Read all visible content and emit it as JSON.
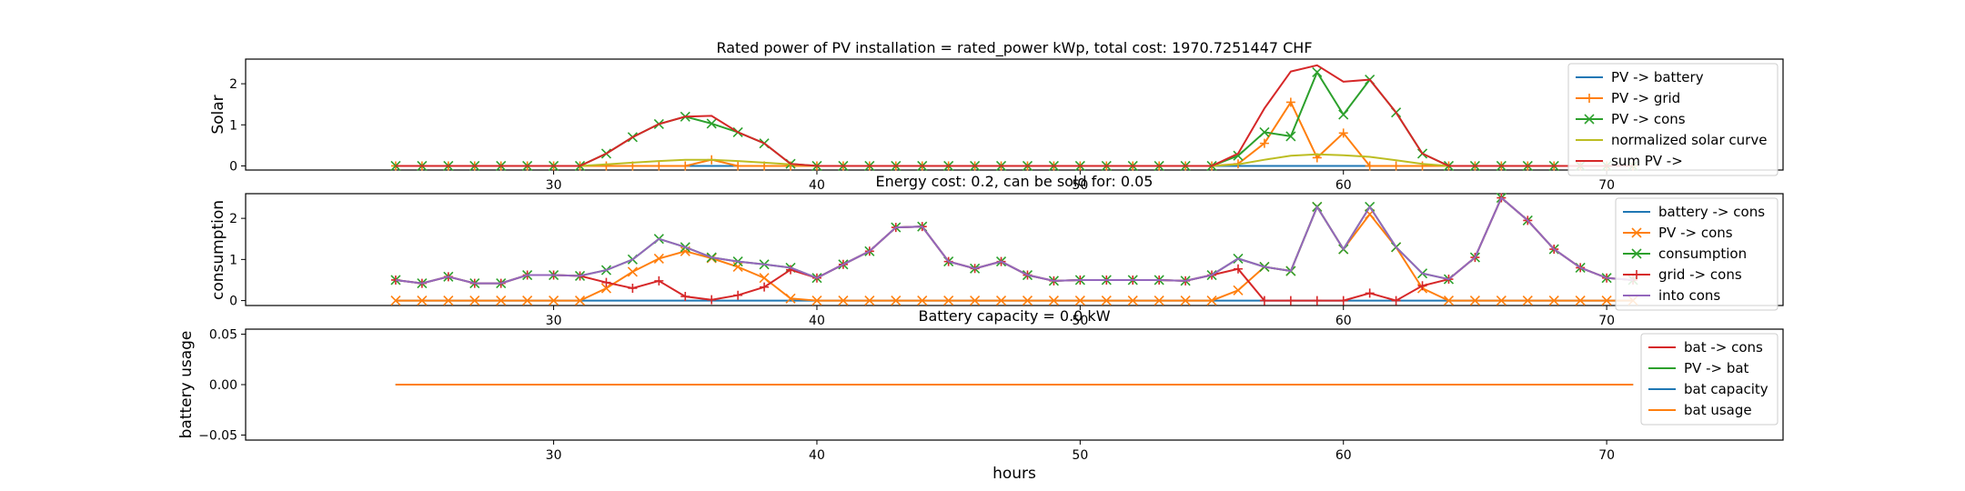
{
  "figure": {
    "xlabel": "hours",
    "xticks": [
      30,
      40,
      50,
      60,
      70
    ]
  },
  "chart_data": [
    {
      "type": "line",
      "title": "Rated power of PV installation = rated_power kWp, total cost: 1970.7251447 CHF",
      "xlabel": "",
      "ylabel": "Solar",
      "xlim": [
        18.3,
        76.7
      ],
      "ylim": [
        -0.1,
        2.6
      ],
      "yticks": [
        0,
        1,
        2
      ],
      "legend_position": "top-right",
      "x": [
        24,
        25,
        26,
        27,
        28,
        29,
        30,
        31,
        32,
        33,
        34,
        35,
        36,
        37,
        38,
        39,
        40,
        41,
        42,
        43,
        44,
        45,
        46,
        47,
        48,
        49,
        50,
        51,
        52,
        53,
        54,
        55,
        56,
        57,
        58,
        59,
        60,
        61,
        62,
        63,
        64,
        65,
        66,
        67,
        68,
        69,
        70,
        71
      ],
      "series": [
        {
          "name": "PV -> battery",
          "color": "#1f77b4",
          "marker": "none",
          "values": [
            0,
            0,
            0,
            0,
            0,
            0,
            0,
            0,
            0,
            0,
            0,
            0,
            0,
            0,
            0,
            0,
            0,
            0,
            0,
            0,
            0,
            0,
            0,
            0,
            0,
            0,
            0,
            0,
            0,
            0,
            0,
            0,
            0,
            0,
            0,
            0,
            0,
            0,
            0,
            0,
            0,
            0,
            0,
            0,
            0,
            0,
            0,
            0
          ]
        },
        {
          "name": "PV -> grid",
          "color": "#ff7f0e",
          "marker": "plus",
          "values": [
            0,
            0,
            0,
            0,
            0,
            0,
            0,
            0,
            0,
            0,
            0,
            0,
            0.15,
            0,
            0,
            0,
            0,
            0,
            0,
            0,
            0,
            0,
            0,
            0,
            0,
            0,
            0,
            0,
            0,
            0,
            0,
            0,
            0.05,
            0.55,
            1.55,
            0.2,
            0.8,
            0,
            0,
            0,
            0,
            0,
            0,
            0,
            0,
            0,
            0,
            0
          ]
        },
        {
          "name": "PV -> cons",
          "color": "#2ca02c",
          "marker": "x",
          "values": [
            0,
            0,
            0,
            0,
            0,
            0,
            0,
            0,
            0.3,
            0.7,
            1.02,
            1.2,
            1.03,
            0.82,
            0.55,
            0.05,
            0,
            0,
            0,
            0,
            0,
            0,
            0,
            0,
            0,
            0,
            0,
            0,
            0,
            0,
            0,
            0,
            0.25,
            0.82,
            0.72,
            2.28,
            1.25,
            2.1,
            1.3,
            0.3,
            0,
            0,
            0,
            0,
            0,
            0,
            0,
            0
          ]
        },
        {
          "name": "normalized solar curve",
          "color": "#bcbd22",
          "marker": "none",
          "values": [
            0,
            0,
            0,
            0,
            0,
            0,
            0,
            0,
            0.04,
            0.08,
            0.12,
            0.15,
            0.15,
            0.12,
            0.08,
            0.04,
            0,
            0,
            0,
            0,
            0,
            0,
            0,
            0,
            0,
            0,
            0,
            0,
            0,
            0,
            0,
            0,
            0.04,
            0.15,
            0.25,
            0.28,
            0.26,
            0.22,
            0.14,
            0.05,
            0,
            0,
            0,
            0,
            0,
            0,
            0,
            0
          ]
        },
        {
          "name": "sum PV ->",
          "color": "#d62728",
          "marker": "none",
          "values": [
            0,
            0,
            0,
            0,
            0,
            0,
            0,
            0,
            0.3,
            0.7,
            1.02,
            1.2,
            1.22,
            0.82,
            0.55,
            0.05,
            0,
            0,
            0,
            0,
            0,
            0,
            0,
            0,
            0,
            0,
            0,
            0,
            0,
            0,
            0,
            0,
            0.3,
            1.4,
            2.3,
            2.45,
            2.05,
            2.1,
            1.3,
            0.3,
            0,
            0,
            0,
            0,
            0,
            0,
            0,
            0
          ]
        }
      ]
    },
    {
      "type": "line",
      "title": "Energy cost: 0.2, can be sold for: 0.05",
      "xlabel": "",
      "ylabel": "consumption",
      "xlim": [
        18.3,
        76.7
      ],
      "ylim": [
        -0.12,
        2.6
      ],
      "yticks": [
        0,
        1,
        2
      ],
      "legend_position": "top-right",
      "x": [
        24,
        25,
        26,
        27,
        28,
        29,
        30,
        31,
        32,
        33,
        34,
        35,
        36,
        37,
        38,
        39,
        40,
        41,
        42,
        43,
        44,
        45,
        46,
        47,
        48,
        49,
        50,
        51,
        52,
        53,
        54,
        55,
        56,
        57,
        58,
        59,
        60,
        61,
        62,
        63,
        64,
        65,
        66,
        67,
        68,
        69,
        70,
        71
      ],
      "series": [
        {
          "name": "battery -> cons",
          "color": "#1f77b4",
          "marker": "none",
          "values": [
            0,
            0,
            0,
            0,
            0,
            0,
            0,
            0,
            0,
            0,
            0,
            0,
            0,
            0,
            0,
            0,
            0,
            0,
            0,
            0,
            0,
            0,
            0,
            0,
            0,
            0,
            0,
            0,
            0,
            0,
            0,
            0,
            0,
            0,
            0,
            0,
            0,
            0,
            0,
            0,
            0,
            0,
            0,
            0,
            0,
            0,
            0,
            0
          ]
        },
        {
          "name": "PV -> cons",
          "color": "#ff7f0e",
          "marker": "x",
          "values": [
            0,
            0,
            0,
            0,
            0,
            0,
            0,
            0,
            0.3,
            0.7,
            1.02,
            1.2,
            1.03,
            0.82,
            0.55,
            0.05,
            0,
            0,
            0,
            0,
            0,
            0,
            0,
            0,
            0,
            0,
            0,
            0,
            0,
            0,
            0,
            0,
            0.25,
            0.82,
            0.72,
            2.28,
            1.25,
            2.1,
            1.3,
            0.3,
            0,
            0,
            0,
            0,
            0,
            0,
            0,
            0
          ]
        },
        {
          "name": "consumption",
          "color": "#2ca02c",
          "marker": "x",
          "values": [
            0.5,
            0.42,
            0.58,
            0.42,
            0.42,
            0.62,
            0.62,
            0.6,
            0.74,
            1.0,
            1.5,
            1.3,
            1.05,
            0.95,
            0.88,
            0.8,
            0.55,
            0.88,
            1.2,
            1.78,
            1.8,
            0.95,
            0.78,
            0.95,
            0.62,
            0.48,
            0.5,
            0.5,
            0.5,
            0.5,
            0.48,
            0.62,
            1.02,
            0.82,
            0.72,
            2.28,
            1.25,
            2.28,
            1.3,
            0.66,
            0.52,
            1.05,
            2.5,
            1.95,
            1.25,
            0.8,
            0.55,
            0.5
          ]
        },
        {
          "name": "grid -> cons",
          "color": "#d62728",
          "marker": "plus",
          "values": [
            0.5,
            0.42,
            0.58,
            0.42,
            0.42,
            0.62,
            0.62,
            0.6,
            0.44,
            0.3,
            0.48,
            0.1,
            0.02,
            0.13,
            0.33,
            0.75,
            0.55,
            0.88,
            1.2,
            1.78,
            1.8,
            0.95,
            0.78,
            0.95,
            0.62,
            0.48,
            0.5,
            0.5,
            0.5,
            0.5,
            0.48,
            0.62,
            0.77,
            0,
            0,
            0,
            0,
            0.18,
            0,
            0.36,
            0.52,
            1.05,
            2.5,
            1.95,
            1.25,
            0.8,
            0.55,
            0.5
          ]
        },
        {
          "name": "into cons",
          "color": "#9467bd",
          "marker": "none",
          "values": [
            0.5,
            0.42,
            0.58,
            0.42,
            0.42,
            0.62,
            0.62,
            0.6,
            0.74,
            1.0,
            1.5,
            1.3,
            1.05,
            0.95,
            0.88,
            0.8,
            0.55,
            0.88,
            1.2,
            1.78,
            1.8,
            0.95,
            0.78,
            0.95,
            0.62,
            0.48,
            0.5,
            0.5,
            0.5,
            0.5,
            0.48,
            0.62,
            1.02,
            0.82,
            0.72,
            2.28,
            1.25,
            2.28,
            1.3,
            0.66,
            0.52,
            1.05,
            2.5,
            1.95,
            1.25,
            0.8,
            0.55,
            0.5
          ]
        }
      ]
    },
    {
      "type": "line",
      "title": "Battery capacity = 0.0 kW",
      "xlabel": "hours",
      "ylabel": "battery usage",
      "xlim": [
        18.3,
        76.7
      ],
      "ylim": [
        -0.055,
        0.055
      ],
      "yticks": [
        -0.05,
        0.0,
        0.05
      ],
      "ytick_labels": [
        "−0.05",
        "0.00",
        "0.05"
      ],
      "legend_position": "top-right",
      "x": [
        24,
        71
      ],
      "series": [
        {
          "name": "bat -> cons",
          "color": "#d62728",
          "marker": "none",
          "values": [
            0,
            0
          ]
        },
        {
          "name": "PV -> bat",
          "color": "#2ca02c",
          "marker": "none",
          "values": [
            0,
            0
          ]
        },
        {
          "name": "bat capacity",
          "color": "#1f77b4",
          "marker": "none",
          "values": [
            0,
            0
          ]
        },
        {
          "name": "bat usage",
          "color": "#ff7f0e",
          "marker": "none",
          "values": [
            0,
            0
          ]
        }
      ]
    }
  ]
}
